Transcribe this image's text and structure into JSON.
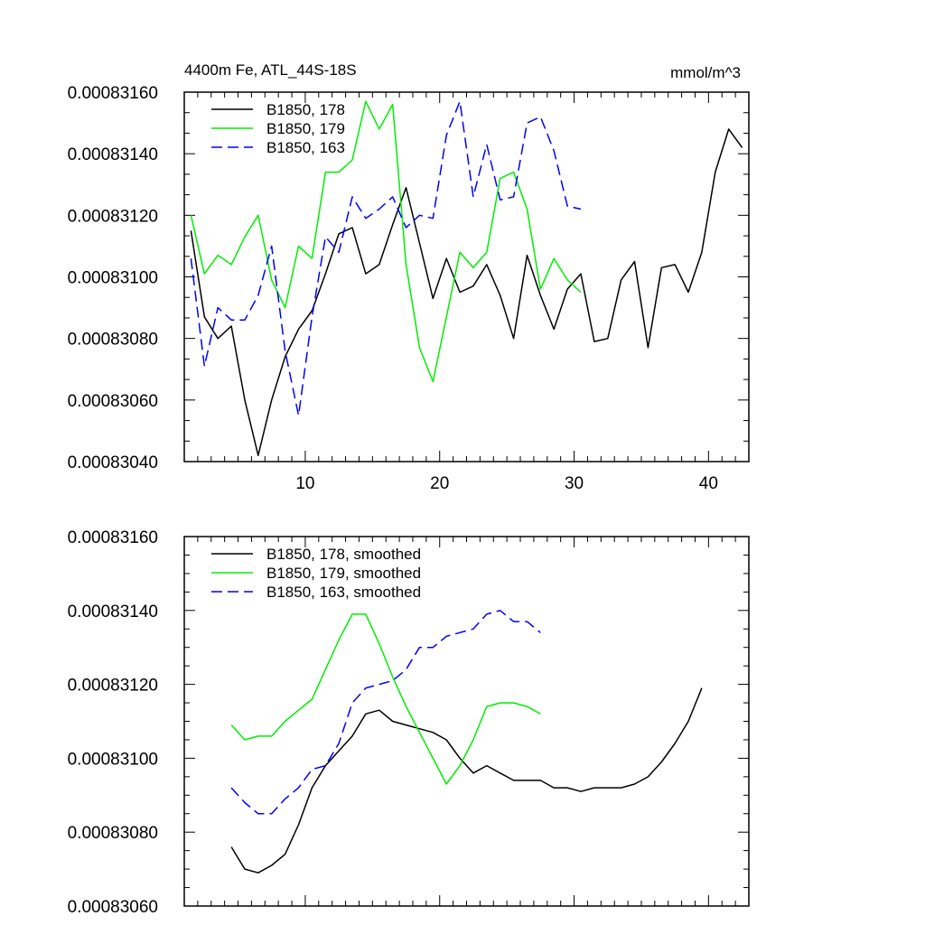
{
  "chart_data": [
    {
      "type": "line",
      "title": "4400m Fe, ATL_44S-18S",
      "units": "mmol/m^3",
      "xlabel": "",
      "ylabel": "",
      "xlim": [
        1,
        43
      ],
      "ylim": [
        0.0008304,
        0.0008316
      ],
      "xticks": [
        10,
        20,
        30,
        40
      ],
      "xtick_labels": [
        "10",
        "20",
        "30",
        "40"
      ],
      "yticks": [
        0.0008304,
        0.0008306,
        0.0008308,
        0.000831,
        0.0008312,
        0.0008314,
        0.0008316
      ],
      "ytick_labels": [
        "0.00083040",
        "0.00083060",
        "0.00083080",
        "0.00083100",
        "0.00083120",
        "0.00083140",
        "0.00083160"
      ],
      "legend_position": "top-left",
      "series": [
        {
          "name": "B1850, 178",
          "color": "#000000",
          "dash": "solid",
          "x": [
            1.5,
            2.5,
            3.5,
            4.5,
            5.5,
            6.5,
            7.5,
            8.5,
            9.5,
            10.5,
            11.5,
            12.5,
            13.5,
            14.5,
            15.5,
            16.5,
            17.5,
            18.5,
            19.5,
            20.5,
            21.5,
            22.5,
            23.5,
            24.5,
            25.5,
            26.5,
            27.5,
            28.5,
            29.5,
            30.5,
            31.5,
            32.5,
            33.5,
            34.5,
            35.5,
            36.5,
            37.5,
            38.5,
            39.5,
            40.5,
            41.5,
            42.5
          ],
          "values": [
            0.00083115,
            0.00083087,
            0.0008308,
            0.00083084,
            0.0008306,
            0.00083042,
            0.0008306,
            0.00083074,
            0.00083083,
            0.00083089,
            0.00083101,
            0.00083114,
            0.00083116,
            0.00083101,
            0.00083104,
            0.00083117,
            0.00083129,
            0.00083111,
            0.00083093,
            0.00083106,
            0.00083095,
            0.00083097,
            0.00083104,
            0.00083094,
            0.0008308,
            0.00083107,
            0.00083094,
            0.00083083,
            0.00083096,
            0.00083101,
            0.00083079,
            0.0008308,
            0.00083099,
            0.00083105,
            0.00083077,
            0.00083103,
            0.00083104,
            0.00083095,
            0.00083108,
            0.00083134,
            0.00083148,
            0.00083142
          ]
        },
        {
          "name": "B1850, 179",
          "color": "#00ee00",
          "dash": "solid",
          "x": [
            1.5,
            2.5,
            3.5,
            4.5,
            5.5,
            6.5,
            7.5,
            8.5,
            9.5,
            10.5,
            11.5,
            12.5,
            13.5,
            14.5,
            15.5,
            16.5,
            17.5,
            18.5,
            19.5,
            20.5,
            21.5,
            22.5,
            23.5,
            24.5,
            25.5,
            26.5,
            27.5,
            28.5,
            29.5,
            30.5
          ],
          "values": [
            0.0008312,
            0.00083101,
            0.00083107,
            0.00083104,
            0.00083113,
            0.0008312,
            0.00083099,
            0.0008309,
            0.0008311,
            0.00083106,
            0.00083134,
            0.00083134,
            0.00083138,
            0.00083157,
            0.00083148,
            0.00083156,
            0.00083104,
            0.00083077,
            0.00083066,
            0.00083087,
            0.00083108,
            0.00083103,
            0.00083108,
            0.00083132,
            0.00083134,
            0.00083122,
            0.00083096,
            0.00083106,
            0.00083099,
            0.00083095
          ]
        },
        {
          "name": "B1850, 163",
          "color": "#0000ff",
          "dash": "dashed",
          "x": [
            1.5,
            2.5,
            3.5,
            4.5,
            5.5,
            6.5,
            7.5,
            8.5,
            9.5,
            10.5,
            11.5,
            12.5,
            13.5,
            14.5,
            15.5,
            16.5,
            17.5,
            18.5,
            19.5,
            20.5,
            21.5,
            22.5,
            23.5,
            24.5,
            25.5,
            26.5,
            27.5,
            28.5,
            29.5,
            30.5
          ],
          "values": [
            0.00083106,
            0.00083071,
            0.0008309,
            0.00083086,
            0.00083086,
            0.00083094,
            0.0008311,
            0.00083076,
            0.00083055,
            0.00083087,
            0.00083113,
            0.00083108,
            0.00083126,
            0.00083119,
            0.00083122,
            0.00083126,
            0.00083116,
            0.0008312,
            0.00083119,
            0.00083146,
            0.00083157,
            0.00083126,
            0.00083143,
            0.00083125,
            0.00083126,
            0.0008315,
            0.00083152,
            0.00083141,
            0.00083123,
            0.00083122
          ]
        }
      ]
    },
    {
      "type": "line",
      "title": "",
      "xlabel": "",
      "ylabel": "",
      "xlim": [
        1,
        43
      ],
      "ylim": [
        0.0008306,
        0.0008316
      ],
      "xticks": [
        10,
        20,
        30,
        40
      ],
      "xtick_labels": [],
      "yticks": [
        0.0008306,
        0.0008308,
        0.000831,
        0.0008312,
        0.0008314,
        0.0008316
      ],
      "ytick_labels": [
        "0.00083060",
        "0.00083080",
        "0.00083100",
        "0.00083120",
        "0.00083140",
        "0.00083160"
      ],
      "legend_position": "top-left",
      "series": [
        {
          "name": "B1850, 178, smoothed",
          "color": "#000000",
          "dash": "solid",
          "x": [
            4.5,
            5.5,
            6.5,
            7.5,
            8.5,
            9.5,
            10.5,
            11.5,
            12.5,
            13.5,
            14.5,
            15.5,
            16.5,
            17.5,
            18.5,
            19.5,
            20.5,
            21.5,
            22.5,
            23.5,
            24.5,
            25.5,
            26.5,
            27.5,
            28.5,
            29.5,
            30.5,
            31.5,
            32.5,
            33.5,
            34.5,
            35.5,
            36.5,
            37.5,
            38.5,
            39.5
          ],
          "values": [
            0.00083076,
            0.0008307,
            0.00083069,
            0.00083071,
            0.00083074,
            0.00083082,
            0.00083092,
            0.00083098,
            0.00083102,
            0.00083106,
            0.00083112,
            0.00083113,
            0.0008311,
            0.00083109,
            0.00083108,
            0.00083107,
            0.00083105,
            0.000831,
            0.00083096,
            0.00083098,
            0.00083096,
            0.00083094,
            0.00083094,
            0.00083094,
            0.00083092,
            0.00083092,
            0.00083091,
            0.00083092,
            0.00083092,
            0.00083092,
            0.00083093,
            0.00083095,
            0.00083099,
            0.00083104,
            0.0008311,
            0.00083119
          ]
        },
        {
          "name": "B1850, 179, smoothed",
          "color": "#00ee00",
          "dash": "solid",
          "x": [
            4.5,
            5.5,
            6.5,
            7.5,
            8.5,
            9.5,
            10.5,
            11.5,
            12.5,
            13.5,
            14.5,
            15.5,
            16.5,
            17.5,
            18.5,
            19.5,
            20.5,
            21.5,
            22.5,
            23.5,
            24.5,
            25.5,
            26.5,
            27.5
          ],
          "values": [
            0.00083109,
            0.00083105,
            0.00083106,
            0.00083106,
            0.0008311,
            0.00083113,
            0.00083116,
            0.00083124,
            0.00083132,
            0.00083139,
            0.00083139,
            0.00083131,
            0.00083122,
            0.00083114,
            0.00083107,
            0.000831,
            0.00083093,
            0.00083098,
            0.00083105,
            0.00083114,
            0.00083115,
            0.00083115,
            0.00083114,
            0.00083112
          ]
        },
        {
          "name": "B1850, 163, smoothed",
          "color": "#0000ff",
          "dash": "dashed",
          "x": [
            4.5,
            5.5,
            6.5,
            7.5,
            8.5,
            9.5,
            10.5,
            11.5,
            12.5,
            13.5,
            14.5,
            15.5,
            16.5,
            17.5,
            18.5,
            19.5,
            20.5,
            21.5,
            22.5,
            23.5,
            24.5,
            25.5,
            26.5,
            27.5
          ],
          "values": [
            0.00083092,
            0.00083088,
            0.00083085,
            0.00083085,
            0.00083089,
            0.00083092,
            0.00083097,
            0.00083098,
            0.00083104,
            0.00083115,
            0.00083119,
            0.0008312,
            0.00083121,
            0.00083124,
            0.0008313,
            0.0008313,
            0.00083133,
            0.00083134,
            0.00083135,
            0.00083139,
            0.0008314,
            0.00083137,
            0.00083137,
            0.00083134
          ]
        }
      ]
    }
  ]
}
